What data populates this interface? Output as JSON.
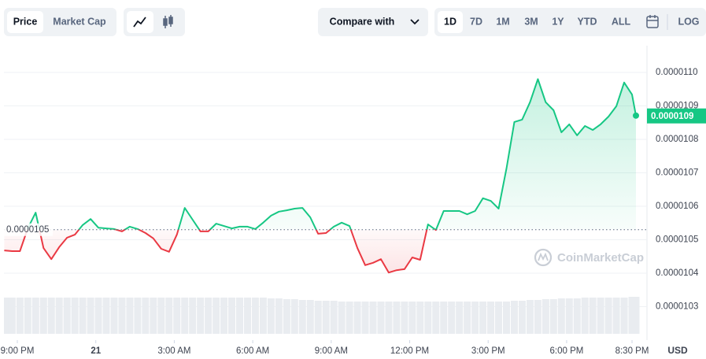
{
  "toolbar": {
    "tabs": [
      "Price",
      "Market Cap"
    ],
    "compare": "Compare with",
    "ranges": [
      "1D",
      "7D",
      "1M",
      "3M",
      "1Y",
      "YTD",
      "ALL"
    ],
    "log": "LOG"
  },
  "chart_data": {
    "type": "area",
    "x": [
      0,
      0.3,
      0.6,
      0.9,
      1.2,
      1.5,
      1.8,
      2.1,
      2.4,
      2.7,
      3.0,
      3.3,
      3.6,
      3.9,
      4.2,
      4.5,
      4.8,
      5.1,
      5.4,
      5.7,
      6.0,
      6.3,
      6.6,
      6.9,
      7.2,
      7.5,
      7.8,
      8.1,
      8.4,
      8.7,
      9.0,
      9.3,
      9.6,
      9.9,
      10.2,
      10.5,
      10.8,
      11.1,
      11.4,
      11.7,
      12.0,
      12.3,
      12.6,
      12.9,
      13.2,
      13.5,
      13.8,
      14.1,
      14.4,
      14.7,
      15.0,
      15.3,
      15.6,
      15.9,
      16.2,
      16.5,
      16.8,
      17.1,
      17.4,
      17.7,
      18.0,
      18.3,
      18.6,
      18.9,
      19.2,
      19.5,
      19.8,
      20.1,
      20.4,
      20.7,
      21.0,
      21.3,
      21.6,
      21.9,
      22.2,
      22.5,
      22.8,
      23.1,
      23.4,
      23.7,
      24.0,
      24.15
    ],
    "values": [
      1.0468e-05,
      1.0466e-05,
      1.0466e-05,
      1.0534e-05,
      1.0581e-05,
      1.0475e-05,
      1.0442e-05,
      1.0478e-05,
      1.0506e-05,
      1.0515e-05,
      1.0544e-05,
      1.0562e-05,
      1.0536e-05,
      1.0534e-05,
      1.0532e-05,
      1.0525e-05,
      1.0539e-05,
      1.0532e-05,
      1.052e-05,
      1.0504e-05,
      1.0473e-05,
      1.0464e-05,
      1.0515e-05,
      1.0595e-05,
      1.056e-05,
      1.0525e-05,
      1.0525e-05,
      1.0548e-05,
      1.0541e-05,
      1.0534e-05,
      1.0539e-05,
      1.0539e-05,
      1.0532e-05,
      1.0551e-05,
      1.0572e-05,
      1.0584e-05,
      1.0588e-05,
      1.0593e-05,
      1.0595e-05,
      1.0567e-05,
      1.0518e-05,
      1.052e-05,
      1.0539e-05,
      1.0551e-05,
      1.0541e-05,
      1.0475e-05,
      1.0424e-05,
      1.0431e-05,
      1.0442e-05,
      1.0402e-05,
      1.0409e-05,
      1.0412e-05,
      1.0447e-05,
      1.044e-05,
      1.0546e-05,
      1.0529e-05,
      1.0586e-05,
      1.0586e-05,
      1.0586e-05,
      1.0576e-05,
      1.0586e-05,
      1.0624e-05,
      1.0616e-05,
      1.0593e-05,
      1.0713e-05,
      1.0852e-05,
      1.0859e-05,
      1.0911e-05,
      1.098e-05,
      1.0911e-05,
      1.0887e-05,
      1.0821e-05,
      1.0845e-05,
      1.0812e-05,
      1.084e-05,
      1.0828e-05,
      1.0845e-05,
      1.0868e-05,
      1.0899e-05,
      1.097e-05,
      1.0934e-05,
      1.0871e-05
    ],
    "up_color": "#16c784",
    "down_color": "#ea3943",
    "baseline": {
      "value": 1.053e-05,
      "label": "0.0000105"
    },
    "last_price": {
      "value": 1.087e-05,
      "label": "0.0000109"
    },
    "xlim": [
      0,
      24.15
    ],
    "xticks": [
      {
        "value": 0.5,
        "label": "9:00 PM"
      },
      {
        "value": 3.5,
        "label": "21"
      },
      {
        "value": 6.5,
        "label": "3:00 AM"
      },
      {
        "value": 9.5,
        "label": "6:00 AM"
      },
      {
        "value": 12.5,
        "label": "9:00 AM"
      },
      {
        "value": 15.5,
        "label": "12:00 PM"
      },
      {
        "value": 18.5,
        "label": "3:00 PM"
      },
      {
        "value": 21.5,
        "label": "6:00 PM"
      },
      {
        "value": 24,
        "label": "8:30 PM"
      }
    ],
    "ylim": [
      1.02e-05,
      1.108e-05
    ],
    "yticks": [
      1.03e-05,
      1.04e-05,
      1.05e-05,
      1.06e-05,
      1.07e-05,
      1.08e-05,
      1.09e-05,
      {
        "value": 1.1e-05,
        "label": "0.0000110"
      }
    ],
    "grid": true,
    "volume": {
      "values": [
        46,
        46,
        46,
        46,
        46,
        46,
        46,
        46,
        46,
        46,
        46,
        46,
        46,
        46,
        46,
        46,
        46,
        46,
        46,
        46,
        46,
        46,
        46,
        46,
        46,
        46,
        46,
        46,
        46,
        46,
        46,
        46,
        46,
        46,
        45,
        45,
        44,
        44,
        43,
        43,
        42,
        42,
        42,
        41,
        41,
        41,
        41,
        41,
        41,
        41,
        41,
        41,
        41,
        41,
        41,
        41,
        41,
        41,
        41,
        41,
        41,
        41,
        41,
        41,
        41,
        42,
        42,
        43,
        43,
        44,
        44,
        45,
        45,
        45,
        46,
        46,
        46,
        46,
        46,
        46,
        47,
        47
      ],
      "color": "#e9ecf0",
      "ylim": [
        0,
        100
      ]
    },
    "currency": "USD",
    "watermark": "CoinMarketCap"
  }
}
